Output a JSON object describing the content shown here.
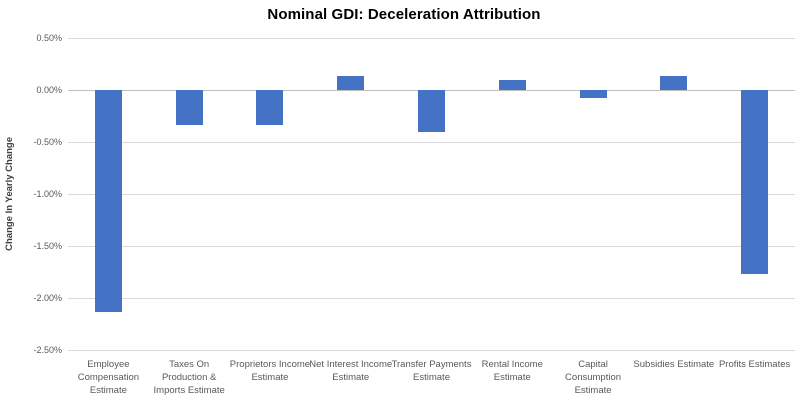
{
  "chart_data": {
    "type": "bar",
    "title": "Nominal GDI: Deceleration Attribution",
    "xlabel": "",
    "ylabel": "Change In Yearly Change",
    "categories": [
      "Employee Compensation Estimate",
      "Taxes On Production & Imports Estimate",
      "Proprietors Income Estimate",
      "Net Interest Income Estimate",
      "Transfer Payments Estimate",
      "Rental Income Estimate",
      "Capital Consumption Estimate",
      "Subsidies Estimate",
      "Profits Estimates"
    ],
    "values": [
      -2.13,
      -0.34,
      -0.34,
      0.13,
      -0.4,
      0.1,
      -0.08,
      0.13,
      -1.77
    ],
    "unit": "%",
    "ylim": [
      -2.5,
      0.5
    ],
    "yticks": [
      {
        "label": "0.50%",
        "value": 0.5
      },
      {
        "label": "0.00%",
        "value": 0.0
      },
      {
        "label": "-0.50%",
        "value": -0.5
      },
      {
        "label": "-1.00%",
        "value": -1.0
      },
      {
        "label": "-1.50%",
        "value": -1.5
      },
      {
        "label": "-2.00%",
        "value": -2.0
      },
      {
        "label": "-2.50%",
        "value": -2.5
      }
    ],
    "grid": true,
    "legend": false,
    "colors": {
      "bar": "#4472C4",
      "gridline": "#D9D9D9",
      "zero_line": "#BFBFBF",
      "tick_text": "#595959",
      "axis_title_text": "#404040",
      "title_text": "#000000"
    }
  }
}
